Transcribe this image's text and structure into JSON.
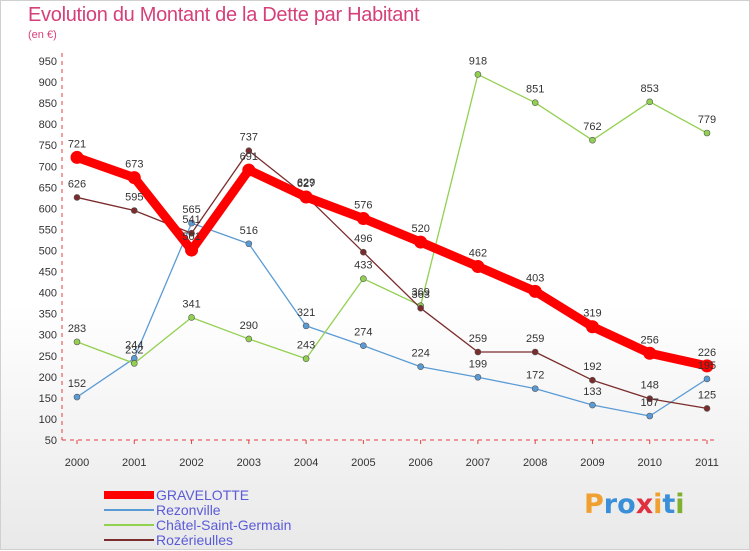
{
  "title": "Evolution du Montant de la Dette par Habitant",
  "unit": "(en €)",
  "logo": {
    "text": "Proxiti",
    "colors": [
      "#f0a030",
      "#3a8fd8",
      "#3a8fd8",
      "#e03040",
      "#f0a030",
      "#3a8fd8",
      "#80b030"
    ]
  },
  "chart_data": {
    "type": "line",
    "title": "Evolution du Montant de la Dette par Habitant",
    "ylabel": "(en €)",
    "ylim": [
      50,
      950
    ],
    "yticks": [
      50,
      100,
      150,
      200,
      250,
      300,
      350,
      400,
      450,
      500,
      550,
      600,
      650,
      700,
      750,
      800,
      850,
      900,
      950
    ],
    "grid": false,
    "legend_position": "bottom-left",
    "x": [
      "2000",
      "2001",
      "2002",
      "2003",
      "2004",
      "2005",
      "2006",
      "2007",
      "2008",
      "2009",
      "2010",
      "2011"
    ],
    "series": [
      {
        "name": "GRAVELOTTE",
        "color": "#ff0000",
        "values": [
          721,
          673,
          501,
          691,
          627,
          576,
          520,
          462,
          403,
          319,
          256,
          226
        ]
      },
      {
        "name": "Rezonville",
        "color": "#5b9bd5",
        "values": [
          152,
          244,
          565,
          516,
          321,
          274,
          224,
          199,
          172,
          133,
          107,
          195
        ]
      },
      {
        "name": "Châtel-Saint-Germain",
        "color": "#92d050",
        "values": [
          283,
          232,
          341,
          290,
          243,
          433,
          369,
          918,
          851,
          762,
          853,
          779
        ]
      },
      {
        "name": "Rozérieulles",
        "color": "#7b2c2c",
        "values": [
          626,
          595,
          541,
          737,
          629,
          496,
          363,
          259,
          259,
          192,
          148,
          125
        ]
      }
    ],
    "data_labels": [
      [
        721,
        673,
        501,
        691,
        627,
        576,
        520,
        462,
        403,
        319,
        256,
        226
      ],
      [
        152,
        244,
        565,
        516,
        321,
        274,
        224,
        199,
        172,
        133,
        107,
        195
      ],
      [
        283,
        232,
        341,
        290,
        243,
        433,
        369,
        918,
        851,
        762,
        853,
        779
      ],
      [
        626,
        595,
        541,
        737,
        629,
        496,
        363,
        259,
        259,
        192,
        148,
        125
      ]
    ]
  }
}
